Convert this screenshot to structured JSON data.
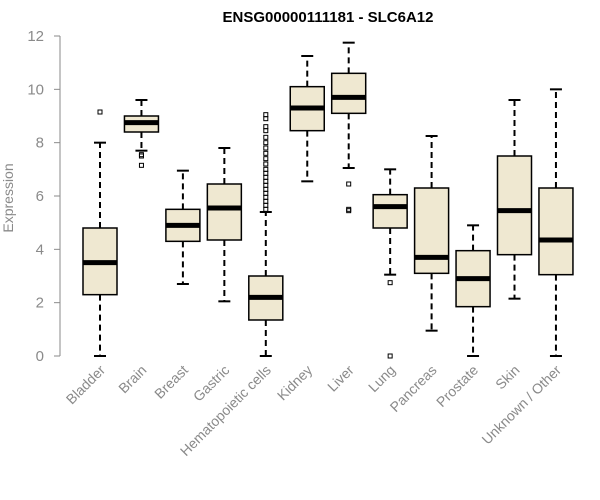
{
  "chart_data": {
    "type": "boxplot",
    "title": "ENSG00000111181 - SLC6A12",
    "ylabel": "Expression",
    "xlabel": "",
    "ylim": [
      0,
      12
    ],
    "yticks": [
      0,
      2,
      4,
      6,
      8,
      10,
      12
    ],
    "categories": [
      "Bladder",
      "Brain",
      "Breast",
      "Gastric",
      "Hematopoietic cells",
      "Kidney",
      "Liver",
      "Lung",
      "Pancreas",
      "Prostate",
      "Skin",
      "Unknown / Other"
    ],
    "boxes": [
      {
        "name": "Bladder",
        "min": 0.0,
        "q1": 2.3,
        "median": 3.5,
        "q3": 4.8,
        "max": 8.0,
        "outliers": [
          9.15
        ]
      },
      {
        "name": "Brain",
        "min": 7.7,
        "q1": 8.4,
        "median": 8.75,
        "q3": 9.0,
        "max": 9.6,
        "outliers": [
          7.55,
          7.5,
          7.15
        ]
      },
      {
        "name": "Breast",
        "min": 2.7,
        "q1": 4.3,
        "median": 4.9,
        "q3": 5.5,
        "max": 6.95,
        "outliers": []
      },
      {
        "name": "Gastric",
        "min": 2.05,
        "q1": 4.35,
        "median": 5.55,
        "q3": 6.45,
        "max": 7.8,
        "outliers": []
      },
      {
        "name": "Hematopoietic cells",
        "min": 0.0,
        "q1": 1.35,
        "median": 2.2,
        "q3": 3.0,
        "max": 5.4,
        "outliers": [
          5.5,
          5.65,
          5.8,
          5.95,
          6.1,
          6.25,
          6.4,
          6.55,
          6.7,
          6.85,
          7.0,
          7.2,
          7.4,
          7.6,
          7.8,
          8.0,
          8.2,
          8.45,
          8.6,
          8.9,
          9.05
        ]
      },
      {
        "name": "Kidney",
        "min": 6.55,
        "q1": 8.45,
        "median": 9.3,
        "q3": 10.1,
        "max": 11.25,
        "outliers": []
      },
      {
        "name": "Liver",
        "min": 7.05,
        "q1": 9.1,
        "median": 9.7,
        "q3": 10.6,
        "max": 11.75,
        "outliers": [
          6.45,
          5.5,
          5.45
        ]
      },
      {
        "name": "Lung",
        "min": 3.05,
        "q1": 4.8,
        "median": 5.6,
        "q3": 6.05,
        "max": 7.0,
        "outliers": [
          2.75,
          0.0
        ]
      },
      {
        "name": "Pancreas",
        "min": 0.95,
        "q1": 3.1,
        "median": 3.7,
        "q3": 6.3,
        "max": 8.25,
        "outliers": []
      },
      {
        "name": "Prostate",
        "min": 0.0,
        "q1": 1.85,
        "median": 2.9,
        "q3": 3.95,
        "max": 4.9,
        "outliers": []
      },
      {
        "name": "Skin",
        "min": 2.15,
        "q1": 3.8,
        "median": 5.45,
        "q3": 7.5,
        "max": 9.6,
        "outliers": []
      },
      {
        "name": "Unknown / Other",
        "min": 0.0,
        "q1": 3.05,
        "median": 4.35,
        "q3": 6.3,
        "max": 10.0,
        "outliers": []
      }
    ]
  }
}
